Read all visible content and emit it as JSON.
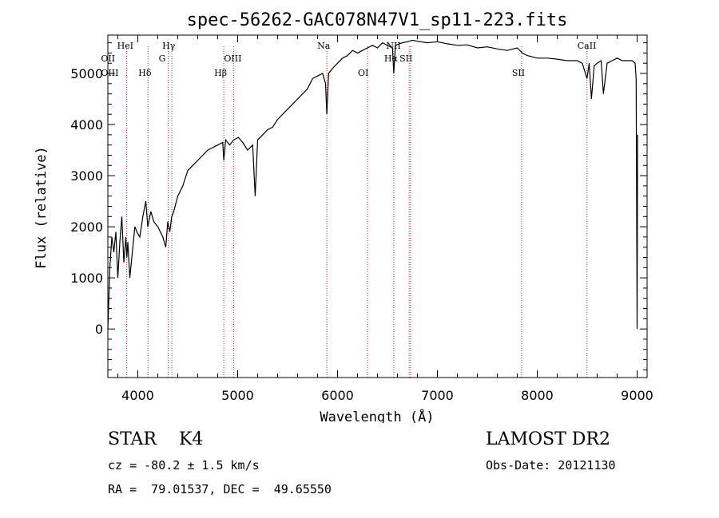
{
  "chart_data": {
    "type": "line",
    "title": "spec-56262-GAC078N47V1_sp11-223.fits",
    "xlabel": "Wavelength (Å)",
    "ylabel": "Flux (relative)",
    "xlim": [
      3700,
      9100
    ],
    "ylim": [
      -950,
      5750
    ],
    "xticks": [
      4000,
      5000,
      6000,
      7000,
      8000,
      9000
    ],
    "yticks": [
      0,
      1000,
      2000,
      3000,
      4000,
      5000
    ],
    "series": [
      {
        "name": "flux",
        "x": [
          3700,
          3720,
          3740,
          3760,
          3780,
          3800,
          3820,
          3840,
          3860,
          3880,
          3890,
          3900,
          3920,
          3950,
          3970,
          3990,
          4020,
          4050,
          4080,
          4100,
          4130,
          4160,
          4200,
          4250,
          4280,
          4300,
          4320,
          4340,
          4360,
          4400,
          4450,
          4500,
          4550,
          4600,
          4650,
          4700,
          4750,
          4800,
          4850,
          4861,
          4880,
          4920,
          4960,
          5007,
          5050,
          5100,
          5150,
          5175,
          5200,
          5250,
          5300,
          5350,
          5400,
          5450,
          5500,
          5550,
          5600,
          5650,
          5700,
          5750,
          5800,
          5850,
          5880,
          5893,
          5910,
          5950,
          6000,
          6050,
          6100,
          6150,
          6200,
          6250,
          6300,
          6350,
          6400,
          6450,
          6500,
          6550,
          6563,
          6580,
          6650,
          6700,
          6750,
          6800,
          6900,
          7000,
          7100,
          7200,
          7300,
          7400,
          7500,
          7600,
          7700,
          7800,
          7850,
          7900,
          8000,
          8100,
          8200,
          8300,
          8400,
          8450,
          8498,
          8520,
          8542,
          8570,
          8600,
          8640,
          8662,
          8700,
          8750,
          8800,
          8850,
          8900,
          8950,
          8980,
          8990,
          9000,
          9005
        ],
        "y": [
          0,
          1200,
          1800,
          1500,
          1900,
          1000,
          1700,
          2200,
          1300,
          1800,
          1400,
          1700,
          1000,
          1600,
          2000,
          1900,
          1800,
          2200,
          2500,
          2000,
          2300,
          2100,
          2000,
          1800,
          1600,
          2100,
          1900,
          2200,
          2300,
          2600,
          2800,
          3100,
          3200,
          3300,
          3400,
          3500,
          3550,
          3600,
          3650,
          3300,
          3700,
          3600,
          3700,
          3750,
          3650,
          3500,
          3600,
          2600,
          3700,
          3800,
          3900,
          3950,
          4100,
          4200,
          4300,
          4400,
          4500,
          4600,
          4700,
          4900,
          4950,
          5000,
          4800,
          4200,
          5000,
          5100,
          5200,
          5300,
          5350,
          5450,
          5400,
          5450,
          5500,
          5550,
          5500,
          5600,
          5550,
          5500,
          5000,
          5550,
          5600,
          5620,
          5650,
          5630,
          5600,
          5620,
          5580,
          5550,
          5560,
          5500,
          5520,
          5480,
          5450,
          5500,
          5400,
          5350,
          5300,
          5300,
          5280,
          5250,
          5250,
          5200,
          4900,
          5200,
          4500,
          5150,
          5200,
          5250,
          4600,
          5200,
          5250,
          5300,
          5250,
          5250,
          5250,
          5200,
          4900,
          0,
          3800
        ]
      }
    ],
    "line_markers": [
      {
        "label": "HeI",
        "wavelength": 3889,
        "row": "top"
      },
      {
        "label": "OII",
        "wavelength": 3727,
        "row": "mid"
      },
      {
        "label": "OIII",
        "wavelength": 3727,
        "row": "low"
      },
      {
        "label": "Hδ",
        "wavelength": 4102,
        "row": "low"
      },
      {
        "label": "Hγ",
        "wavelength": 4341,
        "row": "top"
      },
      {
        "label": "G",
        "wavelength": 4305,
        "row": "mid"
      },
      {
        "label": "Hβ",
        "wavelength": 4861,
        "row": "low"
      },
      {
        "label": "OIII",
        "wavelength": 4959,
        "row": "mid"
      },
      {
        "label": "Na",
        "wavelength": 5893,
        "row": "top"
      },
      {
        "label": "OI",
        "wavelength": 6300,
        "row": "low"
      },
      {
        "label": "NII",
        "wavelength": 6583,
        "row": "top"
      },
      {
        "label": "Hα",
        "wavelength": 6563,
        "row": "mid"
      },
      {
        "label": "SII",
        "wavelength": 6717,
        "row": "mid"
      },
      {
        "label": "SII",
        "wavelength": 7843,
        "row": "low"
      },
      {
        "label": "CaII",
        "wavelength": 8498,
        "row": "top"
      }
    ],
    "marker_lines_at": [
      3889,
      4102,
      4305,
      4341,
      4861,
      4959,
      5893,
      6300,
      6563,
      6717,
      6731,
      7843,
      8498
    ]
  },
  "info": {
    "classification": "STAR    K4",
    "survey": "LAMOST DR2",
    "redshift": "cz = -80.2 ± 1.5 km/s",
    "obs_date": "Obs-Date: 20121130",
    "coords": "RA =  79.01537, DEC =  49.65550"
  },
  "colors": {
    "line": "#000000",
    "marker": "#b03030",
    "axis": "#000000"
  }
}
